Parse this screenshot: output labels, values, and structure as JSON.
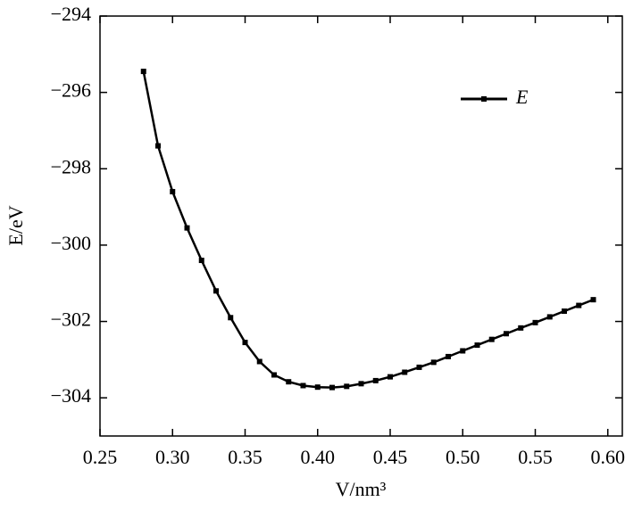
{
  "chart_data": {
    "type": "line",
    "x_label": "V/nm³",
    "y_label": "E/eV",
    "x": [
      0.28,
      0.29,
      0.3,
      0.31,
      0.32,
      0.33,
      0.34,
      0.35,
      0.36,
      0.37,
      0.38,
      0.39,
      0.4,
      0.41,
      0.42,
      0.43,
      0.44,
      0.45,
      0.46,
      0.47,
      0.48,
      0.49,
      0.5,
      0.51,
      0.52,
      0.53,
      0.54,
      0.55,
      0.56,
      0.57,
      0.58,
      0.59
    ],
    "series": [
      {
        "name": "E",
        "color": "#000000",
        "values": [
          -295.45,
          -297.4,
          -298.6,
          -299.55,
          -300.4,
          -301.2,
          -301.9,
          -302.55,
          -303.05,
          -303.4,
          -303.58,
          -303.68,
          -303.72,
          -303.73,
          -303.7,
          -303.63,
          -303.55,
          -303.45,
          -303.33,
          -303.2,
          -303.07,
          -302.92,
          -302.77,
          -302.62,
          -302.47,
          -302.32,
          -302.17,
          -302.03,
          -301.88,
          -301.73,
          -301.58,
          -301.43
        ]
      }
    ],
    "xlim": [
      0.25,
      0.61
    ],
    "ylim": [
      -305,
      -294
    ],
    "xticks": [
      0.25,
      {
        "value": 0.3,
        "label": "0.30"
      },
      0.35,
      {
        "value": 0.4,
        "label": "0.40"
      },
      0.45,
      {
        "value": 0.5,
        "label": "0.50"
      },
      0.55,
      {
        "value": 0.6,
        "label": "0.60"
      }
    ],
    "yticks": [
      {
        "value": -304,
        "label": "−304"
      },
      {
        "value": -302,
        "label": "−302"
      },
      {
        "value": -300,
        "label": "−300"
      },
      {
        "value": -298,
        "label": "−298"
      },
      {
        "value": -296,
        "label": "−296"
      },
      {
        "value": -294,
        "label": "−294"
      }
    ],
    "legend": "upper right",
    "grid": false
  }
}
